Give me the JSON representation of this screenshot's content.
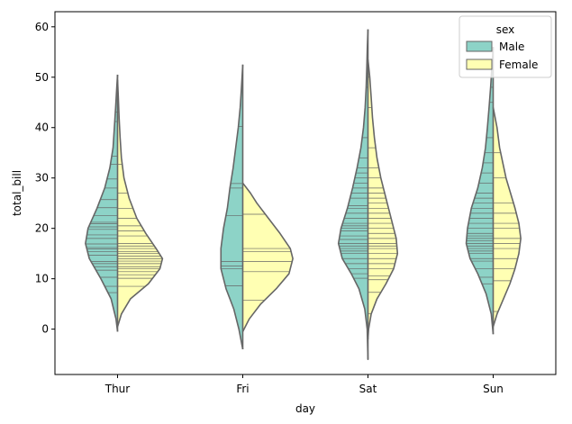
{
  "chart_data": {
    "type": "violin",
    "title": "",
    "xlabel": "day",
    "ylabel": "total_bill",
    "categories": [
      "Thur",
      "Fri",
      "Sat",
      "Sun"
    ],
    "ylim": [
      -9,
      63
    ],
    "yticks": [
      0,
      10,
      20,
      30,
      40,
      50,
      60
    ],
    "grid": false,
    "split": true,
    "inner": "stick",
    "legend": {
      "title": "sex",
      "placement": "top-right",
      "entries": [
        "Male",
        "Female"
      ]
    },
    "series": [
      {
        "name": "Male",
        "color": "#8dd3c7",
        "violins": [
          {
            "category": "Thur",
            "range": [
              -0.5,
              50.5
            ],
            "samples": [
              [
                -0.5,
                0
              ],
              [
                2,
                0.012
              ],
              [
                6,
                0.05
              ],
              [
                10,
                0.13
              ],
              [
                14,
                0.22
              ],
              [
                17,
                0.25
              ],
              [
                20,
                0.23
              ],
              [
                24,
                0.16
              ],
              [
                28,
                0.1
              ],
              [
                32,
                0.06
              ],
              [
                36,
                0.035
              ],
              [
                40,
                0.025
              ],
              [
                44,
                0.015
              ],
              [
                48,
                0.006
              ],
              [
                50.5,
                0
              ]
            ]
          },
          {
            "category": "Fri",
            "range": [
              -4,
              52.5
            ],
            "samples": [
              [
                -4,
                0
              ],
              [
                0,
                0.03
              ],
              [
                4,
                0.07
              ],
              [
                8,
                0.13
              ],
              [
                12,
                0.17
              ],
              [
                16,
                0.17
              ],
              [
                20,
                0.15
              ],
              [
                24,
                0.12
              ],
              [
                28,
                0.1
              ],
              [
                32,
                0.075
              ],
              [
                36,
                0.055
              ],
              [
                40,
                0.035
              ],
              [
                44,
                0.02
              ],
              [
                48,
                0.01
              ],
              [
                52.5,
                0
              ]
            ]
          },
          {
            "category": "Sat",
            "range": [
              -6,
              59.5
            ],
            "samples": [
              [
                -6,
                0
              ],
              [
                0,
                0.006
              ],
              [
                4,
                0.025
              ],
              [
                8,
                0.07
              ],
              [
                11,
                0.13
              ],
              [
                14,
                0.2
              ],
              [
                17,
                0.23
              ],
              [
                20,
                0.21
              ],
              [
                24,
                0.16
              ],
              [
                28,
                0.12
              ],
              [
                32,
                0.085
              ],
              [
                36,
                0.055
              ],
              [
                40,
                0.035
              ],
              [
                44,
                0.022
              ],
              [
                48,
                0.014
              ],
              [
                52,
                0.009
              ],
              [
                56,
                0.005
              ],
              [
                59.5,
                0
              ]
            ]
          },
          {
            "category": "Sun",
            "range": [
              -1,
              56
            ],
            "samples": [
              [
                -1,
                0
              ],
              [
                3,
                0.015
              ],
              [
                7,
                0.055
              ],
              [
                11,
                0.12
              ],
              [
                14,
                0.18
              ],
              [
                17,
                0.21
              ],
              [
                20,
                0.2
              ],
              [
                24,
                0.17
              ],
              [
                28,
                0.12
              ],
              [
                32,
                0.085
              ],
              [
                36,
                0.06
              ],
              [
                40,
                0.045
              ],
              [
                44,
                0.032
              ],
              [
                48,
                0.02
              ],
              [
                52,
                0.01
              ],
              [
                56,
                0
              ]
            ]
          }
        ],
        "observations": [
          [
            7.25,
            8.5,
            10.3,
            11.7,
            12.4,
            13.0,
            13.4,
            14.7,
            15.4,
            15.9,
            16.2,
            16.9,
            18.0,
            18.7,
            19.8,
            20.3,
            20.9,
            21.2,
            22.5,
            24.1,
            25.7,
            28.0,
            29.8,
            32.7,
            34.3,
            41.2,
            43.1
          ],
          [
            8.6,
            12.0,
            12.5,
            13.4,
            22.5,
            28.0,
            28.9,
            40.2
          ],
          [
            10.1,
            11.0,
            12.0,
            13.0,
            14.0,
            15.0,
            15.5,
            16.0,
            16.5,
            17.0,
            17.8,
            18.5,
            19.5,
            20.0,
            20.5,
            21.0,
            22.0,
            23.0,
            24.0,
            24.5,
            26.0,
            27.0,
            28.0,
            29.0,
            30.0,
            31.0,
            32.0,
            34.0,
            38.0,
            48.0,
            50.8
          ],
          [
            9.0,
            10.3,
            12.0,
            13.5,
            14.0,
            15.0,
            15.5,
            16.0,
            16.5,
            17.0,
            17.5,
            18.0,
            18.5,
            19.0,
            20.0,
            21.0,
            22.0,
            23.0,
            24.0,
            25.0,
            26.0,
            27.0,
            29.0,
            31.0,
            33.0,
            35.0,
            38.0,
            45.0,
            48.0
          ]
        ]
      },
      {
        "name": "Female",
        "color": "#ffffb3",
        "violins": [
          {
            "category": "Thur",
            "range": [
              0.5,
              49.5
            ],
            "samples": [
              [
                0.5,
                0
              ],
              [
                3,
                0.03
              ],
              [
                6,
                0.1
              ],
              [
                9,
                0.24
              ],
              [
                12,
                0.33
              ],
              [
                14,
                0.35
              ],
              [
                16,
                0.3
              ],
              [
                19,
                0.22
              ],
              [
                22,
                0.15
              ],
              [
                26,
                0.09
              ],
              [
                30,
                0.05
              ],
              [
                34,
                0.03
              ],
              [
                38,
                0.02
              ],
              [
                42,
                0.012
              ],
              [
                46,
                0.006
              ],
              [
                49.5,
                0
              ]
            ]
          },
          {
            "category": "Fri",
            "range": [
              -0.5,
              29
            ],
            "samples": [
              [
                -0.5,
                0
              ],
              [
                2,
                0.05
              ],
              [
                5,
                0.14
              ],
              [
                8,
                0.26
              ],
              [
                11,
                0.36
              ],
              [
                14,
                0.39
              ],
              [
                16,
                0.37
              ],
              [
                19,
                0.29
              ],
              [
                22,
                0.2
              ],
              [
                25,
                0.11
              ],
              [
                27,
                0.06
              ],
              [
                29,
                0
              ]
            ]
          },
          {
            "category": "Sat",
            "range": [
              -2,
              53.5
            ],
            "samples": [
              [
                -2,
                0
              ],
              [
                0,
                0.005
              ],
              [
                3,
                0.025
              ],
              [
                6,
                0.07
              ],
              [
                9,
                0.14
              ],
              [
                12,
                0.2
              ],
              [
                15,
                0.23
              ],
              [
                18,
                0.22
              ],
              [
                21,
                0.19
              ],
              [
                24,
                0.16
              ],
              [
                27,
                0.13
              ],
              [
                30,
                0.1
              ],
              [
                34,
                0.07
              ],
              [
                38,
                0.05
              ],
              [
                42,
                0.035
              ],
              [
                46,
                0.025
              ],
              [
                50,
                0.014
              ],
              [
                53.5,
                0
              ]
            ]
          },
          {
            "category": "Sun",
            "range": [
              0.5,
              44
            ],
            "samples": [
              [
                0.5,
                0
              ],
              [
                3,
                0.03
              ],
              [
                6,
                0.08
              ],
              [
                9,
                0.13
              ],
              [
                12,
                0.17
              ],
              [
                15,
                0.2
              ],
              [
                18,
                0.215
              ],
              [
                21,
                0.2
              ],
              [
                24,
                0.17
              ],
              [
                27,
                0.135
              ],
              [
                30,
                0.1
              ],
              [
                33,
                0.075
              ],
              [
                36,
                0.05
              ],
              [
                40,
                0.03
              ],
              [
                44,
                0
              ]
            ]
          }
        ],
        "observations": [
          [
            8.5,
            10.1,
            10.8,
            11.4,
            12.0,
            12.4,
            13.0,
            13.5,
            14.0,
            14.5,
            15.0,
            15.4,
            16.0,
            16.5,
            17.0,
            18.5,
            19.5,
            20.5,
            22.0,
            24.0,
            27.0,
            32.7,
            43.1
          ],
          [
            5.75,
            11.4,
            13.4,
            15.4,
            16.0,
            22.8
          ],
          [
            3.1,
            7.3,
            9.8,
            10.6,
            12.0,
            13.0,
            14.0,
            15.0,
            16.0,
            16.5,
            17.0,
            18.0,
            19.0,
            20.0,
            21.0,
            22.0,
            23.0,
            24.0,
            25.0,
            26.0,
            27.0,
            28.0,
            30.0,
            32.0,
            36.0,
            44.0,
            50.0
          ],
          [
            3.5,
            9.6,
            12.0,
            14.0,
            16.0,
            17.0,
            18.0,
            20.0,
            21.0,
            23.0,
            25.0,
            30.0,
            35.0
          ]
        ]
      }
    ]
  }
}
